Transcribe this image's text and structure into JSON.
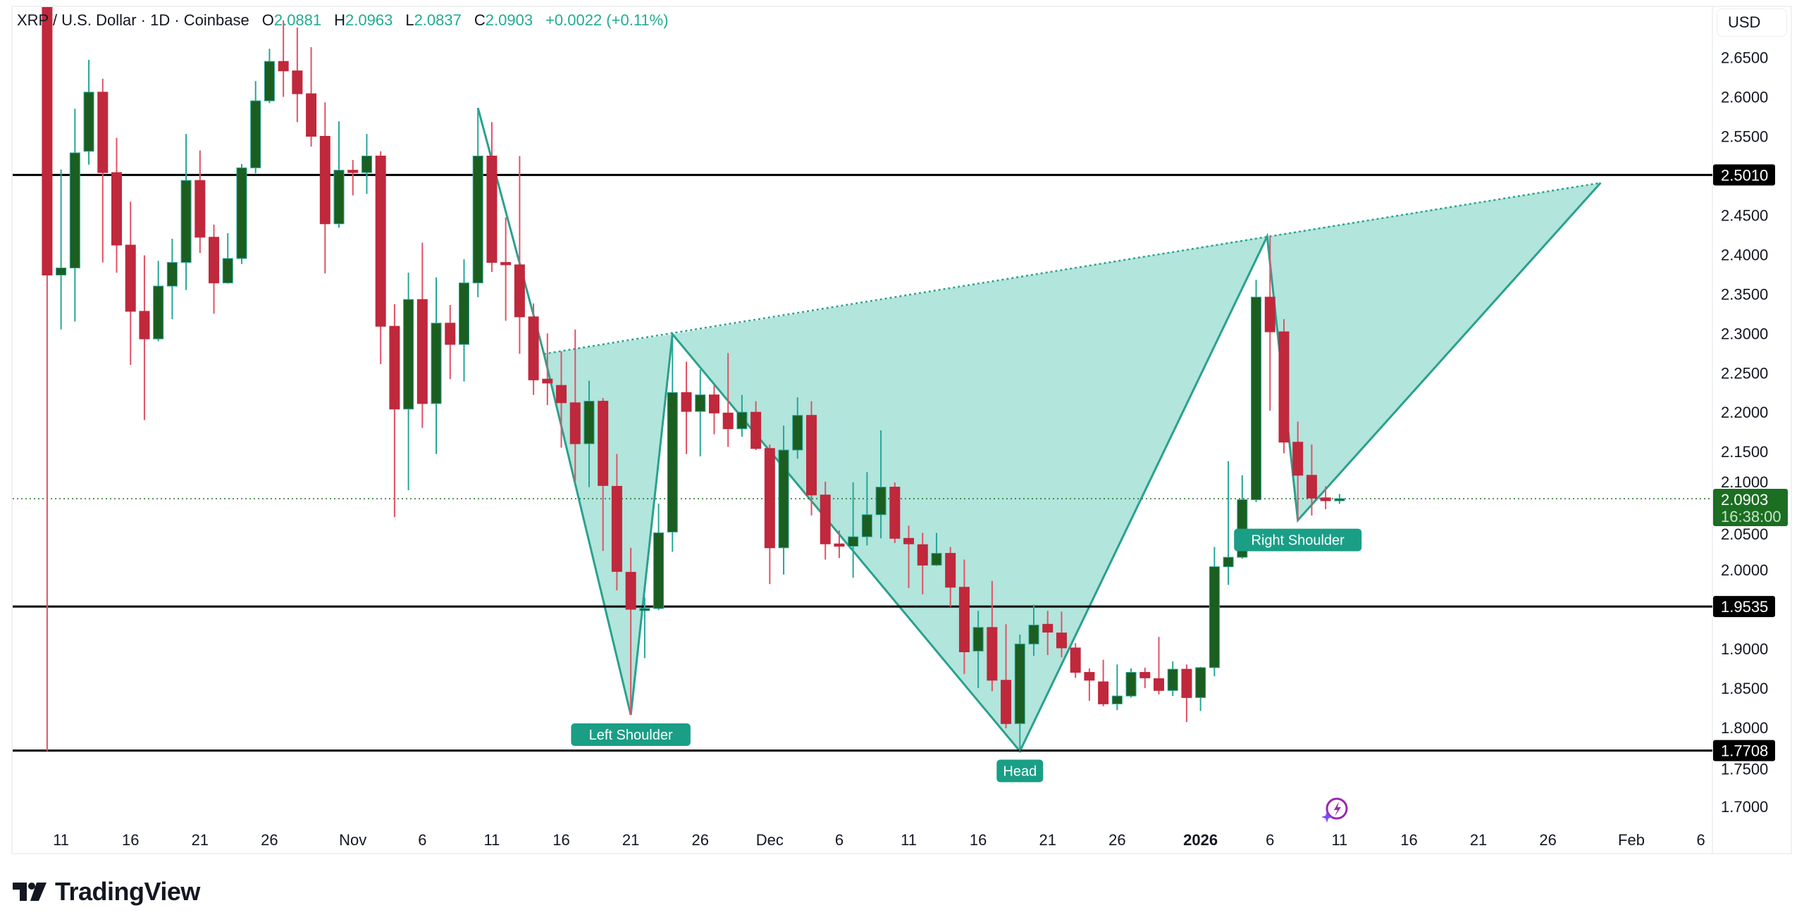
{
  "header": {
    "symbol": "XRP / U.S. Dollar · 1D · Coinbase",
    "open_label": "O",
    "open": "2.0881",
    "high_label": "H",
    "high": "2.0963",
    "low_label": "L",
    "low": "2.0837",
    "close_label": "C",
    "close": "2.0903",
    "change": "+0.0022 (+0.11%)"
  },
  "currency_button": "USD",
  "brand": "TradingView",
  "colors": {
    "up": "#1b5e20",
    "up_wick": "#26a69a",
    "down": "#c0283c",
    "down_wick": "#e05266",
    "pattern_fill": "#b2e5dc",
    "pattern_line": "#2aa18e",
    "label_bg": "#1a9e86",
    "price_label": "#1b6e22"
  },
  "icons": {
    "logo": "tradingview-logo",
    "assistant": "lightning-sparkle-icon"
  },
  "chart_data": {
    "type": "candlestick",
    "ylim": [
      1.675,
      2.715
    ],
    "grid": false,
    "y_ticks": [
      "2.6500",
      "2.6000",
      "2.5500",
      "2.4500",
      "2.4000",
      "2.3500",
      "2.3000",
      "2.2500",
      "2.2000",
      "2.1500",
      "2.1000",
      "2.0500",
      "2.0000",
      "1.9000",
      "1.8500",
      "1.8000",
      "1.7500",
      "1.7000"
    ],
    "x_ticks": [
      {
        "label": "11",
        "date": "2025-10-11"
      },
      {
        "label": "16",
        "date": "2025-10-16"
      },
      {
        "label": "21",
        "date": "2025-10-21"
      },
      {
        "label": "26",
        "date": "2025-10-26"
      },
      {
        "label": "Nov",
        "date": "2025-11-01"
      },
      {
        "label": "6",
        "date": "2025-11-06"
      },
      {
        "label": "11",
        "date": "2025-11-11"
      },
      {
        "label": "16",
        "date": "2025-11-16"
      },
      {
        "label": "21",
        "date": "2025-11-21"
      },
      {
        "label": "26",
        "date": "2025-11-26"
      },
      {
        "label": "Dec",
        "date": "2025-12-01"
      },
      {
        "label": "6",
        "date": "2025-12-06"
      },
      {
        "label": "11",
        "date": "2025-12-11"
      },
      {
        "label": "16",
        "date": "2025-12-16"
      },
      {
        "label": "21",
        "date": "2025-12-21"
      },
      {
        "label": "26",
        "date": "2025-12-26"
      },
      {
        "label": "2026",
        "date": "2026-01-01",
        "bold": true
      },
      {
        "label": "6",
        "date": "2026-01-06"
      },
      {
        "label": "11",
        "date": "2026-01-11"
      },
      {
        "label": "16",
        "date": "2026-01-16"
      },
      {
        "label": "21",
        "date": "2026-01-21"
      },
      {
        "label": "26",
        "date": "2026-01-26"
      },
      {
        "label": "Feb",
        "date": "2026-02-01"
      },
      {
        "label": "6",
        "date": "2026-02-06"
      }
    ],
    "horizontal_levels": [
      {
        "price": 2.501,
        "label": "2.5010"
      },
      {
        "price": 1.9535,
        "label": "1.9535"
      },
      {
        "price": 1.7708,
        "label": "1.7708"
      }
    ],
    "last_price": {
      "price": 2.0903,
      "label": "2.0903",
      "countdown": "16:38:00"
    },
    "pattern": {
      "type": "head-and-shoulders",
      "points": [
        {
          "date": "2025-11-10",
          "price": 2.586
        },
        {
          "date": "2025-11-14T18:00",
          "price": 2.274
        },
        {
          "date": "2025-11-21",
          "price": 1.816,
          "label": "Left Shoulder"
        },
        {
          "date": "2025-11-24",
          "price": 2.299
        },
        {
          "date": "2025-12-19",
          "price": 1.77,
          "label": "Head"
        },
        {
          "date": "2026-01-05T19:00",
          "price": 2.423
        },
        {
          "date": "2026-01-08",
          "price": 2.063,
          "label": "Right Shoulder"
        },
        {
          "date": "2026-01-29T19:00",
          "price": 2.491
        }
      ]
    },
    "candles_fields": [
      "date",
      "open",
      "high",
      "low",
      "close"
    ],
    "candles": [
      [
        "2025-10-10",
        2.83,
        2.87,
        1.77,
        2.374
      ],
      [
        "2025-10-11",
        2.374,
        2.508,
        2.305,
        2.383
      ],
      [
        "2025-10-12",
        2.383,
        2.585,
        2.315,
        2.529
      ],
      [
        "2025-10-13",
        2.531,
        2.647,
        2.514,
        2.606
      ],
      [
        "2025-10-14",
        2.606,
        2.623,
        2.39,
        2.504
      ],
      [
        "2025-10-15",
        2.504,
        2.548,
        2.377,
        2.412
      ],
      [
        "2025-10-16",
        2.412,
        2.467,
        2.26,
        2.328
      ],
      [
        "2025-10-17",
        2.328,
        2.399,
        2.19,
        2.293
      ],
      [
        "2025-10-18",
        2.293,
        2.392,
        2.29,
        2.36
      ],
      [
        "2025-10-19",
        2.36,
        2.42,
        2.318,
        2.39
      ],
      [
        "2025-10-20",
        2.39,
        2.553,
        2.355,
        2.494
      ],
      [
        "2025-10-21",
        2.494,
        2.532,
        2.402,
        2.422
      ],
      [
        "2025-10-22",
        2.422,
        2.438,
        2.325,
        2.364
      ],
      [
        "2025-10-23",
        2.364,
        2.427,
        2.363,
        2.395
      ],
      [
        "2025-10-24",
        2.395,
        2.515,
        2.388,
        2.51
      ],
      [
        "2025-10-25",
        2.51,
        2.62,
        2.503,
        2.595
      ],
      [
        "2025-10-26",
        2.595,
        2.661,
        2.592,
        2.645
      ],
      [
        "2025-10-27",
        2.645,
        2.697,
        2.6,
        2.633
      ],
      [
        "2025-10-28",
        2.633,
        2.688,
        2.568,
        2.604
      ],
      [
        "2025-10-29",
        2.604,
        2.663,
        2.537,
        2.55
      ],
      [
        "2025-10-30",
        2.55,
        2.593,
        2.376,
        2.439
      ],
      [
        "2025-10-31",
        2.439,
        2.569,
        2.434,
        2.507
      ],
      [
        "2025-11-01",
        2.507,
        2.52,
        2.475,
        2.504
      ],
      [
        "2025-11-02",
        2.504,
        2.553,
        2.477,
        2.525
      ],
      [
        "2025-11-03",
        2.525,
        2.531,
        2.261,
        2.309
      ],
      [
        "2025-11-04",
        2.309,
        2.337,
        2.067,
        2.204
      ],
      [
        "2025-11-05",
        2.204,
        2.377,
        2.101,
        2.343
      ],
      [
        "2025-11-06",
        2.343,
        2.415,
        2.18,
        2.211
      ],
      [
        "2025-11-07",
        2.211,
        2.371,
        2.147,
        2.313
      ],
      [
        "2025-11-08",
        2.313,
        2.336,
        2.242,
        2.286
      ],
      [
        "2025-11-09",
        2.286,
        2.394,
        2.239,
        2.364
      ],
      [
        "2025-11-10",
        2.364,
        2.586,
        2.346,
        2.525
      ],
      [
        "2025-11-11",
        2.525,
        2.568,
        2.378,
        2.39
      ],
      [
        "2025-11-12",
        2.39,
        2.447,
        2.316,
        2.387
      ],
      [
        "2025-11-13",
        2.387,
        2.525,
        2.274,
        2.321
      ],
      [
        "2025-11-14",
        2.321,
        2.338,
        2.222,
        2.241
      ],
      [
        "2025-11-15",
        2.242,
        2.3,
        2.209,
        2.237
      ],
      [
        "2025-11-16",
        2.234,
        2.277,
        2.155,
        2.212
      ],
      [
        "2025-11-17",
        2.212,
        2.305,
        2.113,
        2.16
      ],
      [
        "2025-11-18",
        2.16,
        2.24,
        2.105,
        2.214
      ],
      [
        "2025-11-19",
        2.214,
        2.218,
        2.024,
        2.107
      ],
      [
        "2025-11-20",
        2.106,
        2.147,
        1.974,
        1.998
      ],
      [
        "2025-11-21",
        1.997,
        2.028,
        1.816,
        1.95
      ],
      [
        "2025-11-22",
        1.95,
        1.965,
        1.888,
        1.951
      ],
      [
        "2025-11-23",
        1.951,
        2.084,
        1.949,
        2.047
      ],
      [
        "2025-11-24",
        2.048,
        2.297,
        2.023,
        2.225
      ],
      [
        "2025-11-25",
        2.225,
        2.264,
        2.147,
        2.201
      ],
      [
        "2025-11-26",
        2.201,
        2.254,
        2.144,
        2.222
      ],
      [
        "2025-11-27",
        2.222,
        2.234,
        2.172,
        2.199
      ],
      [
        "2025-11-28",
        2.199,
        2.275,
        2.156,
        2.179
      ],
      [
        "2025-11-29",
        2.179,
        2.222,
        2.169,
        2.2
      ],
      [
        "2025-11-30",
        2.2,
        2.214,
        2.152,
        2.154
      ],
      [
        "2025-12-01",
        2.154,
        2.159,
        1.982,
        2.028
      ],
      [
        "2025-12-02",
        2.028,
        2.183,
        1.994,
        2.152
      ],
      [
        "2025-12-03",
        2.152,
        2.219,
        2.141,
        2.196
      ],
      [
        "2025-12-04",
        2.196,
        2.214,
        2.069,
        2.095
      ],
      [
        "2025-12-05",
        2.095,
        2.112,
        2.013,
        2.033
      ],
      [
        "2025-12-06",
        2.033,
        2.05,
        2.015,
        2.03
      ],
      [
        "2025-12-07",
        2.03,
        2.111,
        1.99,
        2.042
      ],
      [
        "2025-12-08",
        2.042,
        2.124,
        2.031,
        2.07
      ],
      [
        "2025-12-09",
        2.07,
        2.177,
        2.04,
        2.105
      ],
      [
        "2025-12-10",
        2.105,
        2.111,
        2.034,
        2.04
      ],
      [
        "2025-12-11",
        2.04,
        2.056,
        1.977,
        2.033
      ],
      [
        "2025-12-12",
        2.032,
        2.047,
        1.969,
        2.006
      ],
      [
        "2025-12-13",
        2.006,
        2.047,
        2.005,
        2.021
      ],
      [
        "2025-12-14",
        2.021,
        2.029,
        1.953,
        1.978
      ],
      [
        "2025-12-15",
        1.978,
        2.013,
        1.868,
        1.896
      ],
      [
        "2025-12-16",
        1.897,
        1.948,
        1.85,
        1.927
      ],
      [
        "2025-12-17",
        1.927,
        1.986,
        1.846,
        1.86
      ],
      [
        "2025-12-18",
        1.86,
        1.931,
        1.799,
        1.805
      ],
      [
        "2025-12-19",
        1.805,
        1.918,
        1.77,
        1.906
      ],
      [
        "2025-12-20",
        1.906,
        1.956,
        1.891,
        1.93
      ],
      [
        "2025-12-21",
        1.931,
        1.948,
        1.892,
        1.921
      ],
      [
        "2025-12-22",
        1.92,
        1.947,
        1.889,
        1.901
      ],
      [
        "2025-12-23",
        1.901,
        1.907,
        1.863,
        1.87
      ],
      [
        "2025-12-24",
        1.87,
        1.875,
        1.834,
        1.86
      ],
      [
        "2025-12-25",
        1.858,
        1.886,
        1.827,
        1.83
      ],
      [
        "2025-12-26",
        1.83,
        1.88,
        1.822,
        1.84
      ],
      [
        "2025-12-27",
        1.84,
        1.875,
        1.838,
        1.87
      ],
      [
        "2025-12-28",
        1.87,
        1.876,
        1.85,
        1.863
      ],
      [
        "2025-12-29",
        1.862,
        1.915,
        1.842,
        1.847
      ],
      [
        "2025-12-30",
        1.847,
        1.884,
        1.84,
        1.874
      ],
      [
        "2025-12-31",
        1.874,
        1.88,
        1.807,
        1.838
      ],
      [
        "2026-01-01",
        1.838,
        1.877,
        1.821,
        1.876
      ],
      [
        "2026-01-02",
        1.876,
        2.029,
        1.865,
        2.004
      ],
      [
        "2026-01-03",
        2.004,
        2.138,
        1.981,
        2.016
      ],
      [
        "2026-01-04",
        2.016,
        2.12,
        2.014,
        2.089
      ],
      [
        "2026-01-05",
        2.089,
        2.368,
        2.086,
        2.346
      ],
      [
        "2026-01-06",
        2.346,
        2.423,
        2.202,
        2.302
      ],
      [
        "2026-01-07",
        2.302,
        2.318,
        2.148,
        2.162
      ],
      [
        "2026-01-08",
        2.162,
        2.188,
        2.062,
        2.12
      ],
      [
        "2026-01-09",
        2.12,
        2.159,
        2.069,
        2.091
      ],
      [
        "2026-01-10",
        2.0914,
        2.106,
        2.077,
        2.0877
      ],
      [
        "2026-01-11",
        2.0881,
        2.0963,
        2.0837,
        2.0903
      ]
    ]
  }
}
